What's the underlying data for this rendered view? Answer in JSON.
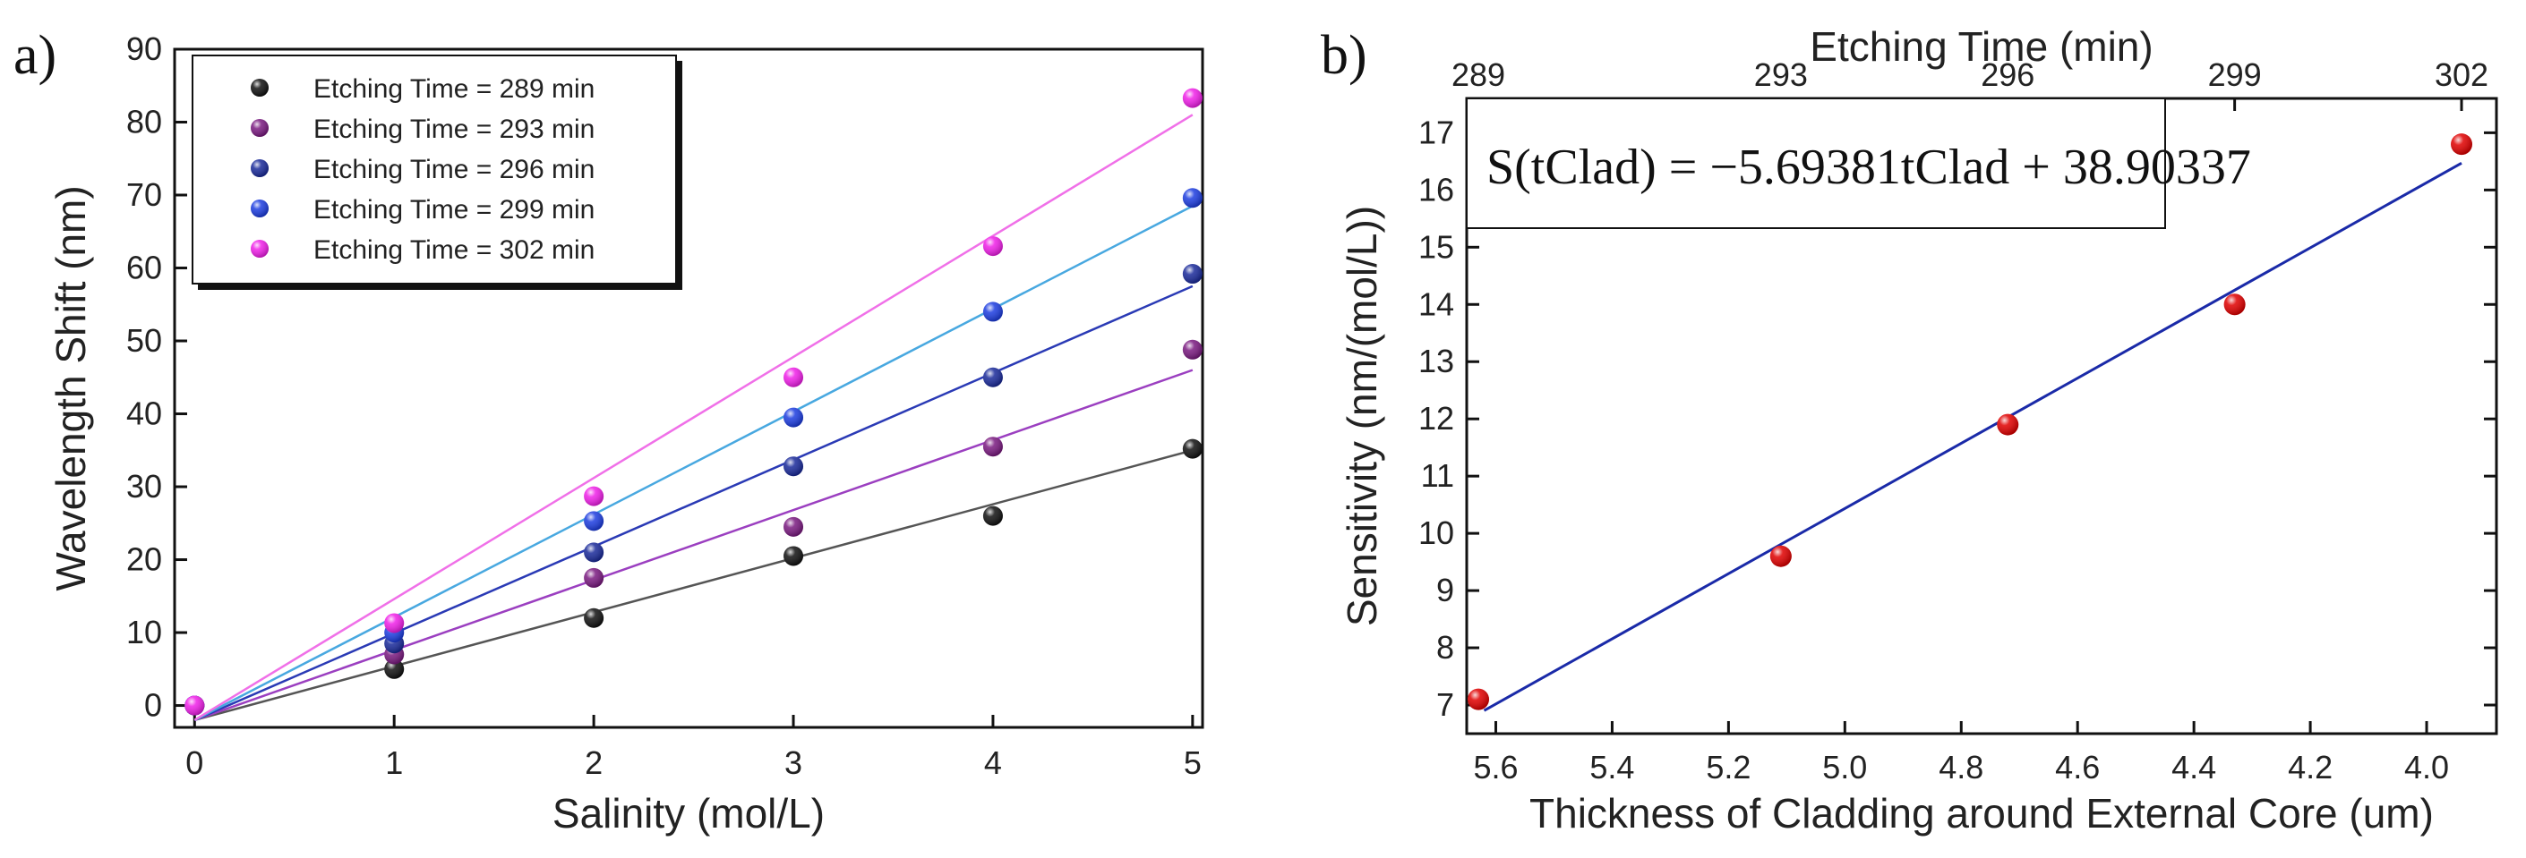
{
  "colors": {
    "axis": "#111111",
    "fit_b": "#1a2aa8",
    "marker_b": "#e00000"
  },
  "chart_data": [
    {
      "type": "scatter",
      "panel_label": "a)",
      "xlabel": "Salinity (mol/L)",
      "ylabel": "Wavelength Shift (nm)",
      "xlim": [
        -0.1,
        5.05
      ],
      "ylim": [
        -3,
        90
      ],
      "xticks": [
        0,
        1,
        2,
        3,
        4,
        5
      ],
      "yticks": [
        0,
        10,
        20,
        30,
        40,
        50,
        60,
        70,
        80,
        90
      ],
      "legend_position": "top-left",
      "series": [
        {
          "name": "Etching Time = 289 min",
          "color": "#111111",
          "fit_color": "#555555",
          "x": [
            0,
            1,
            2,
            3,
            4,
            5
          ],
          "y": [
            0,
            5,
            12,
            20.5,
            26,
            35.2
          ],
          "fit": [
            -2.0,
            35.0
          ]
        },
        {
          "name": "Etching Time = 293 min",
          "color": "#7a1a80",
          "fit_color": "#9b3fc0",
          "x": [
            0,
            1,
            2,
            3,
            4,
            5
          ],
          "y": [
            0,
            7,
            17.5,
            24.5,
            35.5,
            48.8
          ],
          "fit": [
            -2.0,
            46.0
          ]
        },
        {
          "name": "Etching Time = 296 min",
          "color": "#1a2a9a",
          "fit_color": "#2a3ab5",
          "x": [
            0,
            1,
            2,
            3,
            4,
            5
          ],
          "y": [
            0,
            8.5,
            21,
            32.8,
            45,
            59.2
          ],
          "fit": [
            -2.0,
            57.5
          ]
        },
        {
          "name": "Etching Time = 299 min",
          "color": "#1d3de0",
          "fit_color": "#48a8e0",
          "x": [
            0,
            1,
            2,
            3,
            4,
            5
          ],
          "y": [
            0,
            10,
            25.3,
            39.5,
            54,
            69.6
          ],
          "fit": [
            -2.0,
            68.5
          ]
        },
        {
          "name": "Etching Time = 302 min",
          "color": "#f020e8",
          "fit_color": "#f070e8",
          "x": [
            0,
            1,
            2,
            3,
            4,
            5
          ],
          "y": [
            0,
            11.3,
            28.7,
            45,
            63,
            83.3
          ],
          "fit": [
            -2.0,
            81.0
          ]
        }
      ]
    },
    {
      "type": "scatter",
      "panel_label": "b)",
      "top_xlabel": "Etching Time (min)",
      "top_xticks": [
        "289",
        "293",
        "296",
        "299",
        "302"
      ],
      "xlabel": "Thickness of Cladding around External Core (um)",
      "ylabel": "Sensitivity (nm/(mol/L))",
      "xlim": [
        5.65,
        3.88
      ],
      "ylim": [
        6.5,
        17.6
      ],
      "xticks": [
        "5.6",
        "5.4",
        "5.2",
        "5.0",
        "4.8",
        "4.6",
        "4.4",
        "4.2",
        "4.0"
      ],
      "yticks": [
        "7",
        "8",
        "9",
        "10",
        "11",
        "12",
        "13",
        "14",
        "15",
        "16",
        "17"
      ],
      "equation": "S(tClad) = −5.69381tClad + 38.90337",
      "points": {
        "x": [
          5.63,
          5.11,
          4.72,
          4.33,
          3.94
        ],
        "y": [
          7.1,
          9.6,
          11.9,
          14.0,
          16.8
        ]
      },
      "fit": {
        "slope": -5.69381,
        "intercept": 38.90337,
        "x_range": [
          5.62,
          3.94
        ]
      }
    }
  ]
}
